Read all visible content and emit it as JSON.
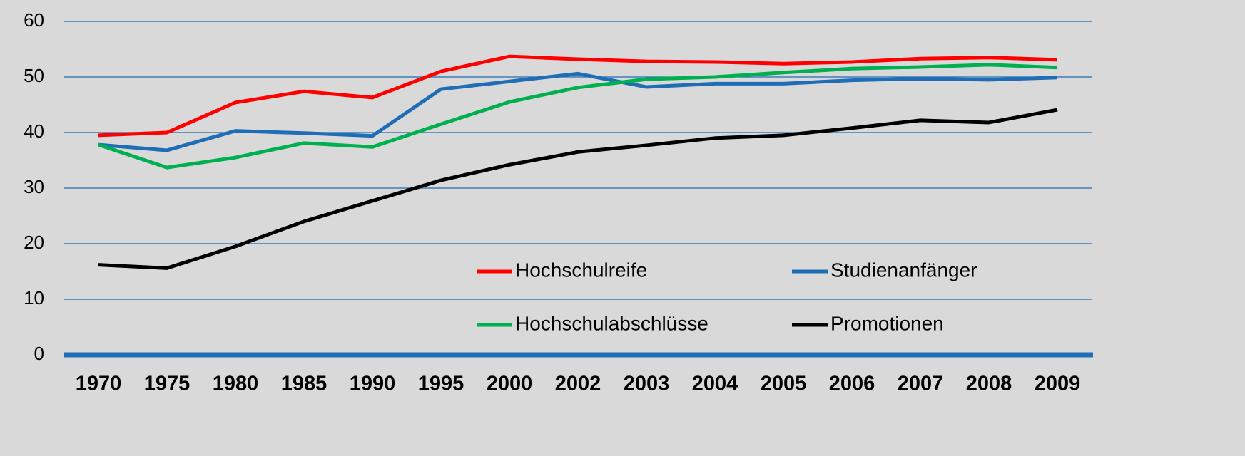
{
  "chart_data": {
    "type": "line",
    "categories": [
      "1970",
      "1975",
      "1980",
      "1985",
      "1990",
      "1995",
      "2000",
      "2002",
      "2003",
      "2004",
      "2005",
      "2006",
      "2007",
      "2008",
      "2009"
    ],
    "series": [
      {
        "name": "Hochschulreife",
        "color": "#ff0000",
        "values": [
          39.5,
          40,
          45.4,
          47.4,
          46.3,
          51,
          53.7,
          53.2,
          52.8,
          52.7,
          52.4,
          52.7,
          53.3,
          53.5,
          53.1
        ]
      },
      {
        "name": "Studienanfänger",
        "color": "#1f6db5",
        "values": [
          37.8,
          36.8,
          40.3,
          39.9,
          39.4,
          47.8,
          49.2,
          50.6,
          48.2,
          48.8,
          48.8,
          49.4,
          49.7,
          49.5,
          49.9
        ]
      },
      {
        "name": "Hochschulabschlüsse",
        "color": "#00b050",
        "values": [
          37.8,
          33.7,
          35.5,
          38.1,
          37.4,
          41.5,
          45.5,
          48.1,
          49.6,
          50,
          50.8,
          51.5,
          51.8,
          52.2,
          51.7
        ]
      },
      {
        "name": "Promotionen",
        "color": "#000000",
        "values": [
          16.2,
          15.6,
          19.5,
          24,
          27.7,
          31.4,
          34.2,
          36.5,
          37.7,
          39,
          39.5,
          40.8,
          42.2,
          41.8,
          44.1
        ]
      }
    ],
    "ylim": [
      0,
      60
    ],
    "yticks": [
      0,
      10,
      20,
      30,
      40,
      50,
      60
    ],
    "grid": true,
    "grid_color": "#1f6db5",
    "legend": "lower-right"
  }
}
